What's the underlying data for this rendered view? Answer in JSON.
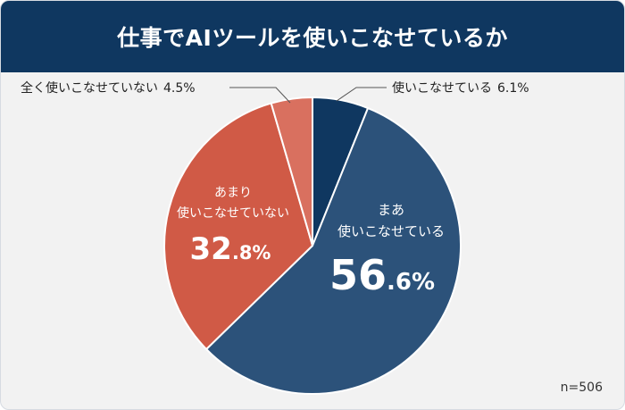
{
  "chart_data": {
    "type": "pie",
    "title": "仕事でAIツールを使いこなせているか",
    "sample_size": "n=506",
    "colors": [
      "#0f3760",
      "#2c527a",
      "#d05a46",
      "#d9705f"
    ],
    "slices": [
      {
        "label": "使いこなせている",
        "value": 6.1,
        "display": "6.1%"
      },
      {
        "label": "まあ使いこなせている",
        "label_lines": [
          "まあ",
          "使いこなせている"
        ],
        "value": 56.6,
        "pct_int": "56",
        "pct_dec": ".6%"
      },
      {
        "label": "あまり使いこなせていない",
        "label_lines": [
          "あまり",
          "使いこなせていない"
        ],
        "value": 32.8,
        "pct_int": "32",
        "pct_dec": ".8%"
      },
      {
        "label": "全く使いこなせていない",
        "value": 4.5,
        "display": "4.5%"
      }
    ]
  }
}
